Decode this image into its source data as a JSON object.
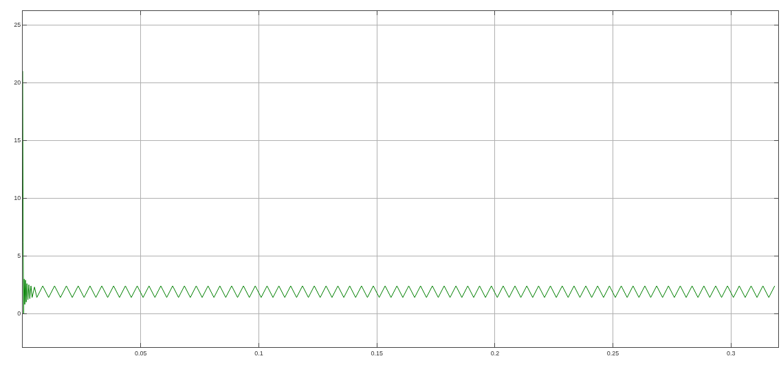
{
  "chart_data": {
    "type": "line",
    "xlim": [
      0,
      0.32
    ],
    "ylim": [
      -2.9,
      26.2
    ],
    "xticks": [
      0.05,
      0.1,
      0.15,
      0.2,
      0.25,
      0.3
    ],
    "yticks": [
      0,
      5,
      10,
      15,
      20,
      25
    ],
    "grid": true,
    "legend": false,
    "marker": "none",
    "line_style": "solid",
    "series": [
      {
        "color": "#008000",
        "x": [
          0,
          0.0002,
          0.0004,
          0.0006,
          0.0009,
          0.0012,
          0.0015,
          0.0018,
          0.0022,
          0.0026,
          0.003,
          0.0035,
          0.004,
          0.005,
          0.006,
          0.0085,
          0.011,
          0.0135,
          0.016,
          0.0185,
          0.021,
          0.0235,
          0.026,
          0.0285,
          0.031,
          0.0335,
          0.036,
          0.0385,
          0.041,
          0.0435,
          0.046,
          0.0485,
          0.051,
          0.0535,
          0.056,
          0.0585,
          0.061,
          0.0635,
          0.066,
          0.0685,
          0.071,
          0.0735,
          0.076,
          0.0785,
          0.081,
          0.0835,
          0.086,
          0.0885,
          0.091,
          0.0935,
          0.096,
          0.0985,
          0.101,
          0.1035,
          0.106,
          0.1085,
          0.111,
          0.1135,
          0.116,
          0.1185,
          0.121,
          0.1235,
          0.126,
          0.1285,
          0.131,
          0.1335,
          0.136,
          0.1385,
          0.141,
          0.1435,
          0.146,
          0.1485,
          0.151,
          0.1535,
          0.156,
          0.1585,
          0.161,
          0.1635,
          0.166,
          0.1685,
          0.171,
          0.1735,
          0.176,
          0.1785,
          0.181,
          0.1835,
          0.186,
          0.1885,
          0.191,
          0.1935,
          0.196,
          0.1985,
          0.201,
          0.2035,
          0.206,
          0.2085,
          0.211,
          0.2135,
          0.216,
          0.2185,
          0.221,
          0.2235,
          0.226,
          0.2285,
          0.231,
          0.2335,
          0.236,
          0.2385,
          0.241,
          0.2435,
          0.246,
          0.2485,
          0.251,
          0.2535,
          0.256,
          0.2585,
          0.261,
          0.2635,
          0.266,
          0.2685,
          0.271,
          0.2735,
          0.276,
          0.2785,
          0.281,
          0.2835,
          0.286,
          0.2885,
          0.291,
          0.2935,
          0.296,
          0.2985,
          0.301,
          0.3035,
          0.306,
          0.3085,
          0.311,
          0.3135,
          0.316,
          0.3185
        ],
        "values": [
          21,
          6.2,
          0,
          3.0,
          0.8,
          2.9,
          1.0,
          2.6,
          1.2,
          2.5,
          1.3,
          2.4,
          1.4,
          2.3,
          1.4,
          2.4,
          1.4,
          2.4,
          1.4,
          2.4,
          1.4,
          2.4,
          1.4,
          2.4,
          1.4,
          2.4,
          1.4,
          2.4,
          1.4,
          2.4,
          1.4,
          2.4,
          1.4,
          2.4,
          1.4,
          2.4,
          1.4,
          2.4,
          1.4,
          2.4,
          1.4,
          2.4,
          1.4,
          2.4,
          1.4,
          2.4,
          1.4,
          2.4,
          1.4,
          2.4,
          1.4,
          2.4,
          1.4,
          2.4,
          1.4,
          2.4,
          1.4,
          2.4,
          1.4,
          2.4,
          1.4,
          2.4,
          1.4,
          2.4,
          1.4,
          2.4,
          1.4,
          2.4,
          1.4,
          2.4,
          1.4,
          2.4,
          1.4,
          2.4,
          1.4,
          2.4,
          1.4,
          2.4,
          1.4,
          2.4,
          1.4,
          2.4,
          1.4,
          2.4,
          1.4,
          2.4,
          1.4,
          2.4,
          1.4,
          2.4,
          1.4,
          2.4,
          1.4,
          2.4,
          1.4,
          2.4,
          1.4,
          2.4,
          1.4,
          2.4,
          1.4,
          2.4,
          1.4,
          2.4,
          1.4,
          2.4,
          1.4,
          2.4,
          1.4,
          2.4,
          1.4,
          2.4,
          1.4,
          2.4,
          1.4,
          2.4,
          1.4,
          2.4,
          1.4,
          2.4,
          1.4,
          2.4,
          1.4,
          2.4,
          1.4,
          2.4,
          1.4,
          2.4,
          1.4,
          2.4,
          1.4,
          2.4,
          1.4,
          2.4,
          1.4,
          2.4,
          1.4,
          2.4,
          1.4,
          2.4
        ]
      }
    ]
  }
}
